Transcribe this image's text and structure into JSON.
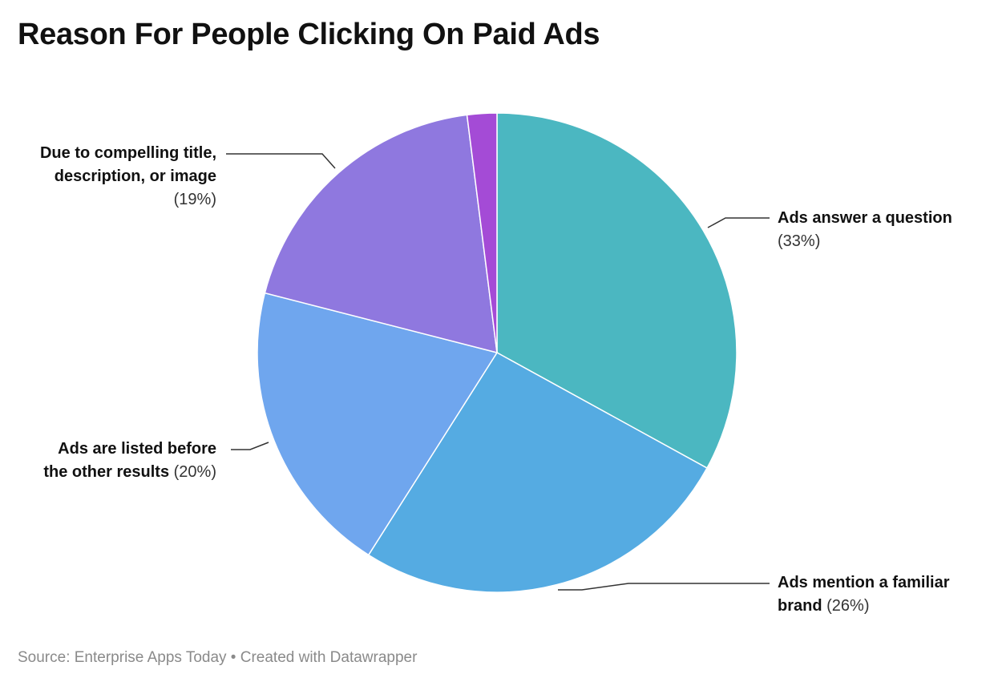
{
  "chart_data": {
    "type": "pie",
    "title": "Reason For People Clicking On Paid Ads",
    "slices": [
      {
        "label": "Ads answer a question",
        "value": 33,
        "value_label": "(33%)",
        "color": "#4bb7c1"
      },
      {
        "label": "Ads mention a familiar brand",
        "value": 26,
        "value_label": "(26%)",
        "color": "#55abe2"
      },
      {
        "label": "Ads are listed before the other results",
        "value": 20,
        "value_label": "(20%)",
        "color": "#6fa6ee"
      },
      {
        "label": "Due to compelling title, description, or image",
        "value": 19,
        "value_label": "(19%)",
        "color": "#8f78df"
      },
      {
        "label": "",
        "value": 2,
        "value_label": "",
        "color": "#a44bd6"
      }
    ]
  },
  "labels": {
    "answer": {
      "name": "Ads answer a question",
      "pct": "(33%)"
    },
    "brand": {
      "name_line1": "Ads mention a familiar",
      "name_line2": "brand",
      "pct": "(26%)"
    },
    "listed": {
      "name_line1": "Ads are listed before",
      "name_line2": "the other results",
      "pct": "(20%)"
    },
    "compelling": {
      "name_line1": "Due to compelling title,",
      "name_line2": "description, or image",
      "pct": "(19%)"
    }
  },
  "footer": {
    "source": "Source: Enterprise Apps Today • Created with Datawrapper"
  }
}
